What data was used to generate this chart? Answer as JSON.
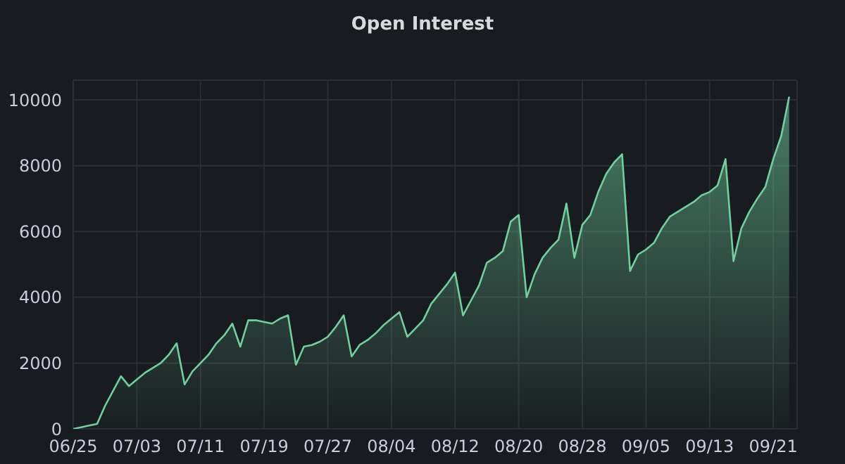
{
  "chart_data": {
    "type": "area",
    "title": "Open Interest",
    "x": [
      "--06-25",
      "--06-26",
      "--06-27",
      "--06-28",
      "--06-29",
      "--06-30",
      "--07-01",
      "--07-02",
      "--07-03",
      "--07-04",
      "--07-05",
      "--07-06",
      "--07-07",
      "--07-08",
      "--07-09",
      "--07-10",
      "--07-11",
      "--07-12",
      "--07-13",
      "--07-14",
      "--07-15",
      "--07-16",
      "--07-17",
      "--07-18",
      "--07-19",
      "--07-20",
      "--07-21",
      "--07-22",
      "--07-23",
      "--07-24",
      "--07-25",
      "--07-26",
      "--07-27",
      "--07-28",
      "--07-29",
      "--07-30",
      "--07-31",
      "--08-01",
      "--08-02",
      "--08-03",
      "--08-04",
      "--08-05",
      "--08-06",
      "--08-07",
      "--08-08",
      "--08-09",
      "--08-10",
      "--08-11",
      "--08-12",
      "--08-13",
      "--08-14",
      "--08-15",
      "--08-16",
      "--08-17",
      "--08-18",
      "--08-19",
      "--08-20",
      "--08-21",
      "--08-22",
      "--08-23",
      "--08-24",
      "--08-25",
      "--08-26",
      "--08-27",
      "--08-28",
      "--08-29",
      "--08-30",
      "--08-31",
      "--09-01",
      "--09-02",
      "--09-03",
      "--09-04",
      "--09-05",
      "--09-06",
      "--09-07",
      "--09-08",
      "--09-09",
      "--09-10",
      "--09-11",
      "--09-12",
      "--09-13",
      "--09-14",
      "--09-15",
      "--09-16",
      "--09-17",
      "--09-18",
      "--09-19",
      "--09-20",
      "--09-21",
      "--09-22",
      "--09-23"
    ],
    "series": [
      {
        "color": "#6fcf9f",
        "values": [
          0,
          50,
          100,
          150,
          700,
          1150,
          1600,
          1300,
          1500,
          1700,
          1850,
          2000,
          2250,
          2600,
          1350,
          1750,
          2000,
          2250,
          2600,
          2850,
          3200,
          2500,
          3300,
          3300,
          3250,
          3200,
          3350,
          3450,
          1950,
          2500,
          2550,
          2650,
          2800,
          3100,
          3450,
          2200,
          2550,
          2700,
          2900,
          3150,
          3350,
          3550,
          2800,
          3050,
          3300,
          3800,
          4100,
          4400,
          4750,
          3450,
          3900,
          4350,
          5050,
          5200,
          5400,
          6300,
          6500,
          4000,
          4700,
          5200,
          5500,
          5750,
          6850,
          5200,
          6200,
          6500,
          7200,
          7750,
          8100,
          8350,
          4800,
          5300,
          5450,
          5650,
          6100,
          6450,
          6600,
          6750,
          6900,
          7100,
          7200,
          7400,
          8200,
          5100,
          6100,
          6600,
          7000,
          7350,
          8200,
          8900,
          10100
        ]
      }
    ],
    "xlim": [
      "--06-25",
      "--09-24"
    ],
    "xticks": [
      {
        "value": "--06-25",
        "label": "06/25"
      },
      {
        "value": "--07-03",
        "label": "07/03"
      },
      {
        "value": "--07-11",
        "label": "07/11"
      },
      {
        "value": "--07-19",
        "label": "07/19"
      },
      {
        "value": "--07-27",
        "label": "07/27"
      },
      {
        "value": "--08-04",
        "label": "08/04"
      },
      {
        "value": "--08-12",
        "label": "08/12"
      },
      {
        "value": "--08-20",
        "label": "08/20"
      },
      {
        "value": "--08-28",
        "label": "08/28"
      },
      {
        "value": "--09-05",
        "label": "09/05"
      },
      {
        "value": "--09-13",
        "label": "09/13"
      },
      {
        "value": "--09-21",
        "label": "09/21"
      }
    ],
    "ylim": [
      0,
      10600
    ],
    "yticks": [
      0,
      2000,
      4000,
      6000,
      8000,
      10000
    ],
    "grid": true,
    "legend": false
  }
}
